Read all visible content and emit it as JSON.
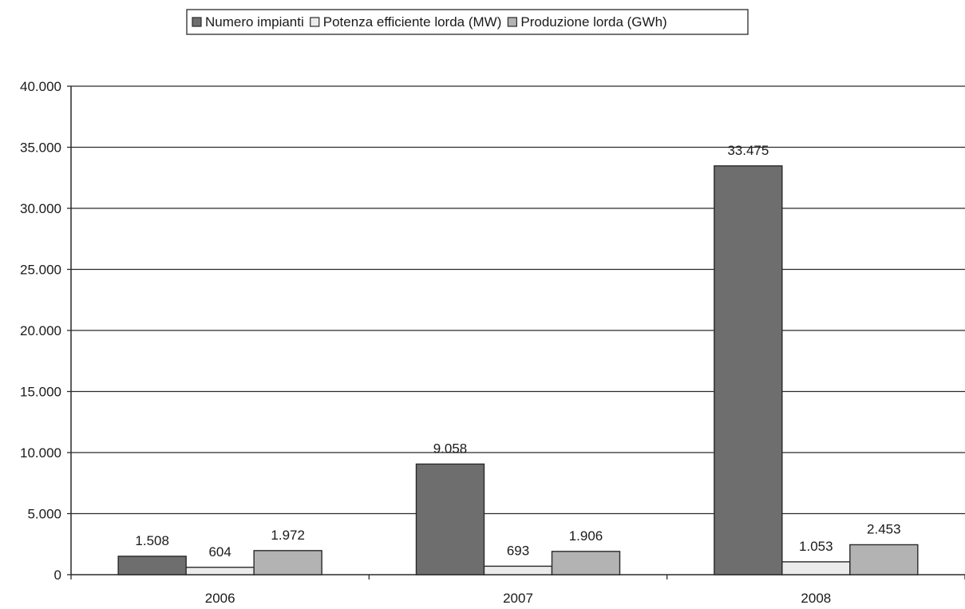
{
  "chart_data": {
    "type": "bar",
    "categories": [
      "2006",
      "2007",
      "2008"
    ],
    "series": [
      {
        "name": "Numero impianti",
        "values": [
          1508,
          9058,
          33475
        ],
        "labels": [
          "1.508",
          "9.058",
          "33.475"
        ],
        "color": "#6e6e6e"
      },
      {
        "name": "Potenza efficiente lorda (MW)",
        "values": [
          604,
          693,
          1053
        ],
        "labels": [
          "604",
          "693",
          "1.053"
        ],
        "color": "#ebebeb"
      },
      {
        "name": "Produzione lorda (GWh)",
        "values": [
          1972,
          1906,
          2453
        ],
        "labels": [
          "1.972",
          "1.906",
          "2.453"
        ],
        "color": "#b3b3b3"
      }
    ],
    "ylim": [
      0,
      40000
    ],
    "yticks": [
      0,
      5000,
      10000,
      15000,
      20000,
      25000,
      30000,
      35000,
      40000
    ],
    "ytick_labels": [
      "0",
      "5.000",
      "10.000",
      "15.000",
      "20.000",
      "25.000",
      "30.000",
      "35.000",
      "40.000"
    ],
    "grid": true,
    "legend_position": "top-center",
    "title": "",
    "xlabel": "",
    "ylabel": ""
  }
}
